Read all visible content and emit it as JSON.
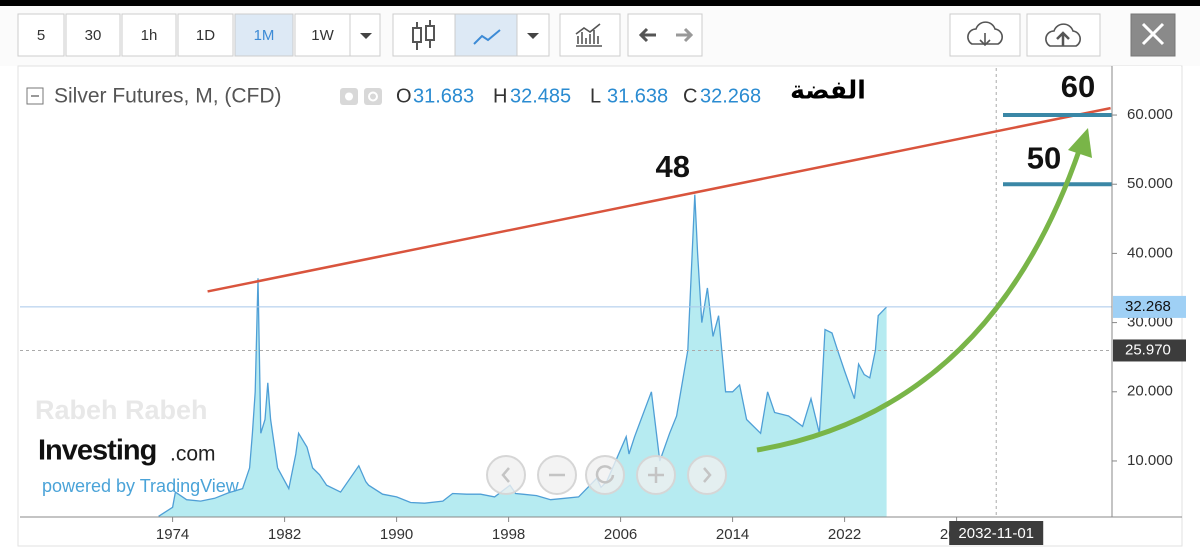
{
  "toolbar": {
    "intervals": [
      "5",
      "30",
      "1h",
      "1D",
      "1M",
      "1W"
    ],
    "active": "1M"
  },
  "chart_data": {
    "type": "area",
    "title": "Silver Futures, M, (CFD)",
    "ohlc": [
      {
        "label": "O",
        "value": 31.683
      },
      {
        "label": "H",
        "value": 32.485
      },
      {
        "label": "L",
        "value": 31.638
      },
      {
        "label": "C",
        "value": 32.268
      }
    ],
    "subtitle": "الفضة",
    "x": [
      1973.0,
      1974.0,
      1974.2,
      1975.0,
      1976.0,
      1977.0,
      1978.0,
      1979.0,
      1979.5,
      1979.7,
      1979.9,
      1980.1,
      1980.3,
      1980.6,
      1980.8,
      1981.0,
      1981.5,
      1982.3,
      1982.8,
      1983.0,
      1983.6,
      1984.0,
      1984.5,
      1985.0,
      1986.0,
      1987.3,
      1987.8,
      1988.0,
      1989.0,
      1990.0,
      1991.0,
      1992.0,
      1993.3,
      1994.0,
      1995.0,
      1996.0,
      1997.0,
      1998.1,
      1998.5,
      1999.0,
      2000.0,
      2001.0,
      2002.0,
      2003.0,
      2004.3,
      2004.6,
      2005.0,
      2006.4,
      2006.6,
      2007.0,
      2008.2,
      2008.8,
      2009.5,
      2010.0,
      2010.8,
      2011.3,
      2011.5,
      2011.8,
      2012.2,
      2012.6,
      2013.0,
      2013.5,
      2014.0,
      2014.5,
      2015.0,
      2016.0,
      2016.5,
      2017.0,
      2018.0,
      2019.0,
      2019.6,
      2020.2,
      2020.6,
      2021.1,
      2021.5,
      2022.0,
      2022.7,
      2023.0,
      2023.4,
      2023.8,
      2024.2,
      2024.4,
      2025.0
    ],
    "values": [
      2.0,
      3.3,
      5.5,
      4.4,
      4.2,
      4.6,
      5.4,
      6.0,
      9.0,
      14.0,
      20.0,
      36.4,
      14.0,
      16.0,
      21.3,
      16.0,
      9.0,
      6.0,
      11.0,
      14.0,
      12.0,
      9.0,
      8.0,
      6.5,
      5.5,
      9.3,
      7.0,
      6.5,
      5.2,
      4.8,
      4.0,
      3.9,
      4.2,
      5.3,
      5.2,
      5.2,
      4.8,
      6.5,
      5.3,
      5.2,
      5.0,
      4.4,
      4.6,
      4.8,
      7.5,
      6.2,
      7.0,
      13.5,
      11.0,
      13.5,
      20.0,
      10.0,
      14.0,
      16.5,
      26.0,
      48.5,
      40.0,
      30.0,
      35.0,
      28.0,
      31.0,
      20.0,
      20.0,
      21.0,
      16.0,
      14.0,
      20.0,
      17.0,
      16.5,
      15.0,
      19.0,
      14.0,
      29.0,
      28.5,
      26.0,
      23.0,
      19.0,
      24.0,
      22.5,
      22.0,
      26.0,
      31.0,
      32.268
    ],
    "color": "#4f9fd6",
    "fill": "#a9e7ee",
    "xlim": [
      1963.1,
      2041.1
    ],
    "xticks": [
      1974,
      1982,
      1990,
      1998,
      2006,
      2014,
      2022,
      2030
    ],
    "ylim": [
      1.9,
      66.8
    ],
    "yticks": [
      {
        "value": 10,
        "label": "10.000"
      },
      {
        "value": 20,
        "label": "20.000"
      },
      {
        "value": 30,
        "label": "30.000"
      },
      {
        "value": 40,
        "label": "40.000"
      },
      {
        "value": 50,
        "label": "50.000"
      },
      {
        "value": 60,
        "label": "60.000"
      }
    ],
    "last_price": 32.268,
    "crosshair": {
      "x": {
        "value": 2032.83,
        "label": "2032-11-01"
      },
      "y": {
        "value": 25.97,
        "label": "25.970"
      }
    },
    "peak_label": "48",
    "levels": [
      {
        "value": 60,
        "label": "60"
      },
      {
        "value": 50,
        "label": "50"
      }
    ],
    "trend_line": {
      "x": [
        1976.5,
        2041.0
      ],
      "y": [
        34.5,
        61.0
      ]
    },
    "watermarks": {
      "author": "Rabeh Rabeh",
      "brand": "Investing",
      "brand_suffix": ".com",
      "powered": "powered by TradingView"
    }
  }
}
